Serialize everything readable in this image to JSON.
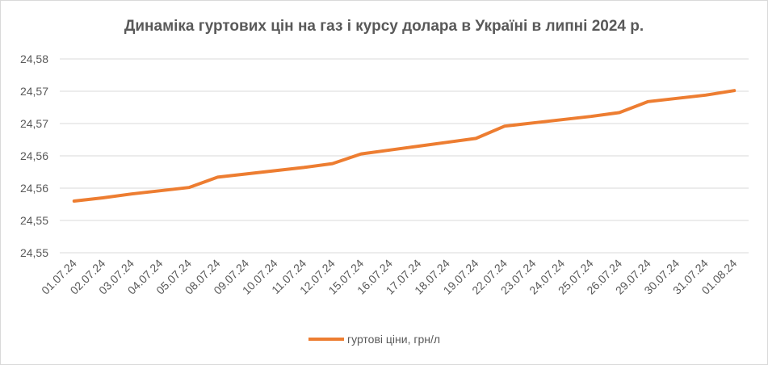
{
  "chart_data": {
    "type": "line",
    "title": "Динаміка гуртових цін на газ і курсу долара в Україні в липні 2024 р.",
    "xlabel": "",
    "ylabel": "",
    "categories": [
      "01.07.24",
      "02.07.24",
      "03.07.24",
      "04.07.24",
      "05.07.24",
      "08.07.24",
      "09.07.24",
      "10.07.24",
      "11.07.24",
      "12.07.24",
      "15.07.24",
      "16.07.24",
      "17.07.24",
      "18.07.24",
      "19.07.24",
      "22.07.24",
      "23.07.24",
      "24.07.24",
      "25.07.24",
      "26.07.24",
      "29.07.24",
      "30.07.24",
      "31.07.24",
      "01.08.24"
    ],
    "y_tick_labels": [
      "24,58",
      "24,57",
      "24,57",
      "24,56",
      "24,56",
      "24,55",
      "24,55"
    ],
    "ylim": [
      24.548,
      24.578
    ],
    "grid": true,
    "legend_position": "bottom",
    "series": [
      {
        "name": "гуртові ціни, грн/л",
        "color": "#ED7D31",
        "values": [
          24.556,
          24.5565,
          24.5571,
          24.5576,
          24.5581,
          24.5597,
          24.5602,
          24.5607,
          24.5612,
          24.5618,
          24.5633,
          24.5639,
          24.5645,
          24.5651,
          24.5657,
          24.5676,
          24.5681,
          24.5686,
          24.5691,
          24.5697,
          24.5714,
          24.5719,
          24.5724,
          24.5731
        ]
      }
    ]
  }
}
